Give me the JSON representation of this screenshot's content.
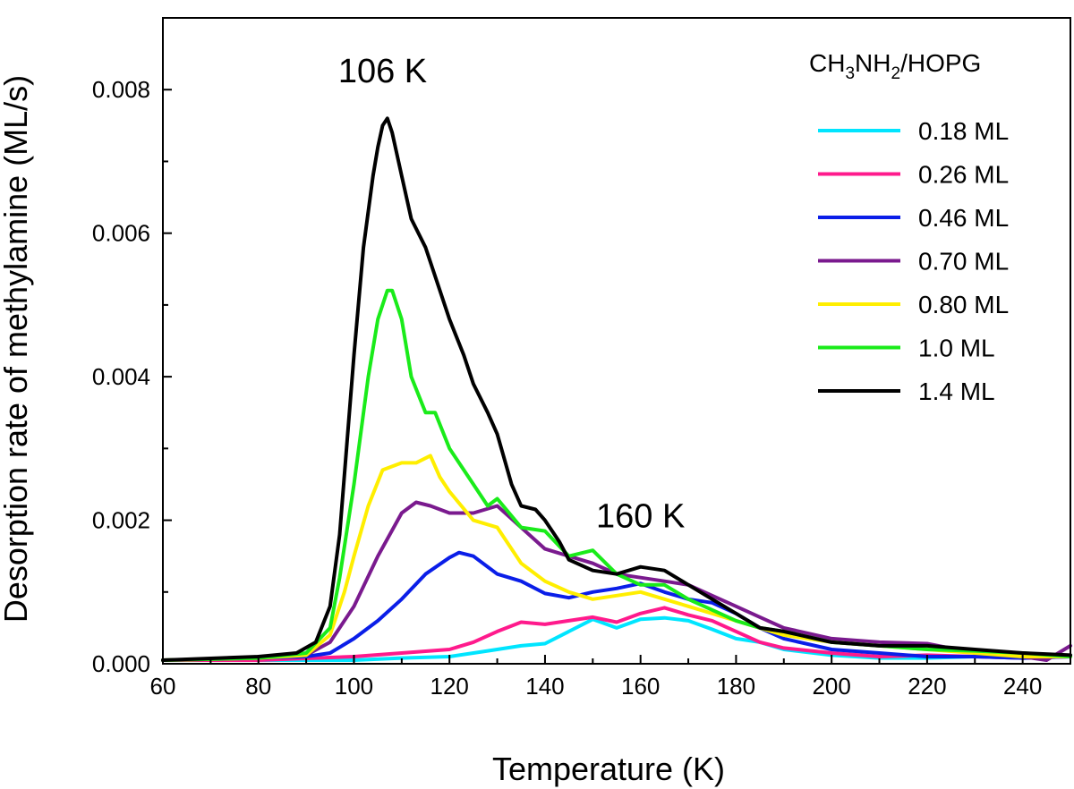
{
  "chart_data": {
    "type": "line",
    "title": "",
    "xlabel": "Temperature (K)",
    "ylabel": "Desorption rate of methylamine (ML/s)",
    "xlim": [
      60,
      250
    ],
    "ylim": [
      0,
      0.009
    ],
    "xticks": [
      60,
      80,
      100,
      120,
      140,
      160,
      180,
      200,
      220,
      240
    ],
    "xtick_labels": [
      "60",
      "80",
      "100",
      "120",
      "140",
      "160",
      "180",
      "200",
      "220",
      "240"
    ],
    "yticks": [
      0,
      0.002,
      0.004,
      0.006,
      0.008
    ],
    "ytick_labels": [
      "0.000",
      "0.002",
      "0.004",
      "0.006",
      "0.008"
    ],
    "legend_position": "top-right",
    "legend_title": {
      "main": "CH",
      "sub1": "3",
      "mid": "NH",
      "sub2": "2",
      "tail": "/HOPG"
    },
    "annotations": [
      {
        "text": "106 K",
        "x": 106,
        "y": 0.0081
      },
      {
        "text": "160 K",
        "x": 160,
        "y": 0.0019
      }
    ],
    "series": [
      {
        "name": "0.18 ML",
        "color": "#00e5ff",
        "x": [
          60,
          80,
          100,
          110,
          120,
          128,
          135,
          140,
          145,
          150,
          155,
          160,
          165,
          170,
          175,
          180,
          185,
          190,
          200,
          210,
          220,
          230,
          240,
          250
        ],
        "y": [
          5e-05,
          5e-05,
          5e-05,
          8e-05,
          0.0001,
          0.00018,
          0.00025,
          0.00028,
          0.00045,
          0.00062,
          0.0005,
          0.00062,
          0.00064,
          0.0006,
          0.00048,
          0.00035,
          0.0003,
          0.0002,
          0.00012,
          8e-05,
          8e-05,
          0.0001,
          8e-05,
          0.0001
        ]
      },
      {
        "name": "0.26 ML",
        "color": "#ff1a8c",
        "x": [
          60,
          80,
          100,
          110,
          120,
          125,
          130,
          135,
          140,
          145,
          150,
          155,
          160,
          165,
          170,
          175,
          180,
          185,
          190,
          200,
          210,
          220,
          230,
          240,
          250
        ],
        "y": [
          5e-05,
          5e-05,
          0.0001,
          0.00015,
          0.0002,
          0.0003,
          0.00045,
          0.00058,
          0.00055,
          0.0006,
          0.00065,
          0.00058,
          0.0007,
          0.00078,
          0.00068,
          0.0006,
          0.00045,
          0.0003,
          0.00022,
          0.00015,
          0.0001,
          0.00012,
          0.0001,
          8e-05,
          0.0001
        ]
      },
      {
        "name": "0.46 ML",
        "color": "#0a1ee8",
        "x": [
          60,
          80,
          90,
          95,
          100,
          105,
          110,
          115,
          120,
          122,
          125,
          130,
          135,
          140,
          145,
          150,
          155,
          160,
          165,
          170,
          175,
          180,
          185,
          190,
          200,
          210,
          220,
          230,
          240,
          250
        ],
        "y": [
          5e-05,
          8e-05,
          0.0001,
          0.00015,
          0.00035,
          0.0006,
          0.0009,
          0.00125,
          0.00148,
          0.00155,
          0.0015,
          0.00125,
          0.00115,
          0.00098,
          0.00092,
          0.001,
          0.00105,
          0.00112,
          0.001,
          0.0009,
          0.00085,
          0.0007,
          0.0005,
          0.00035,
          0.0002,
          0.00015,
          0.0001,
          0.0001,
          8e-05,
          0.0001
        ]
      },
      {
        "name": "0.70 ML",
        "color": "#7a1a8e",
        "x": [
          60,
          80,
          90,
          95,
          100,
          105,
          110,
          113,
          116,
          120,
          125,
          130,
          135,
          140,
          145,
          150,
          155,
          160,
          165,
          170,
          175,
          180,
          185,
          190,
          200,
          210,
          220,
          230,
          240,
          245,
          250
        ],
        "y": [
          5e-05,
          8e-05,
          0.00012,
          0.0003,
          0.0008,
          0.0015,
          0.0021,
          0.00225,
          0.0022,
          0.0021,
          0.0021,
          0.0022,
          0.0019,
          0.0016,
          0.0015,
          0.0014,
          0.00125,
          0.0012,
          0.00115,
          0.0011,
          0.00095,
          0.0008,
          0.00065,
          0.0005,
          0.00035,
          0.0003,
          0.00028,
          0.00015,
          0.0001,
          5e-05,
          0.00025
        ]
      },
      {
        "name": "0.80 ML",
        "color": "#ffee00",
        "x": [
          60,
          80,
          90,
          95,
          98,
          100,
          103,
          106,
          110,
          113,
          116,
          118,
          120,
          125,
          130,
          135,
          140,
          145,
          150,
          155,
          160,
          165,
          170,
          175,
          180,
          185,
          190,
          200,
          210,
          220,
          230,
          240,
          250
        ],
        "y": [
          5e-05,
          8e-05,
          0.00012,
          0.0004,
          0.001,
          0.0015,
          0.0022,
          0.0027,
          0.0028,
          0.0028,
          0.0029,
          0.0026,
          0.0024,
          0.002,
          0.0019,
          0.0014,
          0.00115,
          0.001,
          0.0009,
          0.00095,
          0.001,
          0.0009,
          0.0008,
          0.0007,
          0.0006,
          0.0005,
          0.0004,
          0.0003,
          0.00025,
          0.0002,
          0.00015,
          0.0001,
          0.0001
        ]
      },
      {
        "name": "1.0 ML",
        "color": "#1aeb1a",
        "x": [
          60,
          80,
          90,
          95,
          97,
          100,
          103,
          105,
          107,
          108,
          110,
          112,
          115,
          117,
          120,
          125,
          128,
          130,
          135,
          140,
          145,
          150,
          155,
          160,
          165,
          170,
          175,
          180,
          185,
          190,
          200,
          210,
          220,
          230,
          240,
          250
        ],
        "y": [
          5e-05,
          8e-05,
          0.00015,
          0.0005,
          0.0012,
          0.0025,
          0.004,
          0.0048,
          0.0052,
          0.0052,
          0.0048,
          0.004,
          0.0035,
          0.0035,
          0.003,
          0.0025,
          0.0022,
          0.0023,
          0.0019,
          0.00185,
          0.0015,
          0.00158,
          0.00125,
          0.0011,
          0.0011,
          0.0009,
          0.00075,
          0.0006,
          0.0005,
          0.00045,
          0.0003,
          0.00025,
          0.0002,
          0.00018,
          0.00015,
          0.0001
        ]
      },
      {
        "name": "1.4 ML",
        "color": "#000000",
        "x": [
          60,
          80,
          88,
          92,
          95,
          97,
          100,
          102,
          104,
          105,
          106,
          107,
          108,
          110,
          112,
          115,
          118,
          120,
          123,
          125,
          128,
          130,
          133,
          135,
          138,
          140,
          143,
          145,
          150,
          155,
          160,
          165,
          170,
          175,
          180,
          185,
          190,
          200,
          210,
          220,
          230,
          240,
          250
        ],
        "y": [
          5e-05,
          0.0001,
          0.00015,
          0.0003,
          0.0008,
          0.0018,
          0.0043,
          0.0058,
          0.0068,
          0.0072,
          0.0075,
          0.0076,
          0.0074,
          0.0068,
          0.0062,
          0.0058,
          0.0052,
          0.0048,
          0.0043,
          0.0039,
          0.0035,
          0.0032,
          0.0025,
          0.0022,
          0.00215,
          0.002,
          0.0017,
          0.00145,
          0.0013,
          0.00125,
          0.00135,
          0.0013,
          0.0011,
          0.0009,
          0.0007,
          0.0005,
          0.00045,
          0.0003,
          0.00025,
          0.00025,
          0.0002,
          0.00015,
          0.00012
        ]
      }
    ]
  }
}
